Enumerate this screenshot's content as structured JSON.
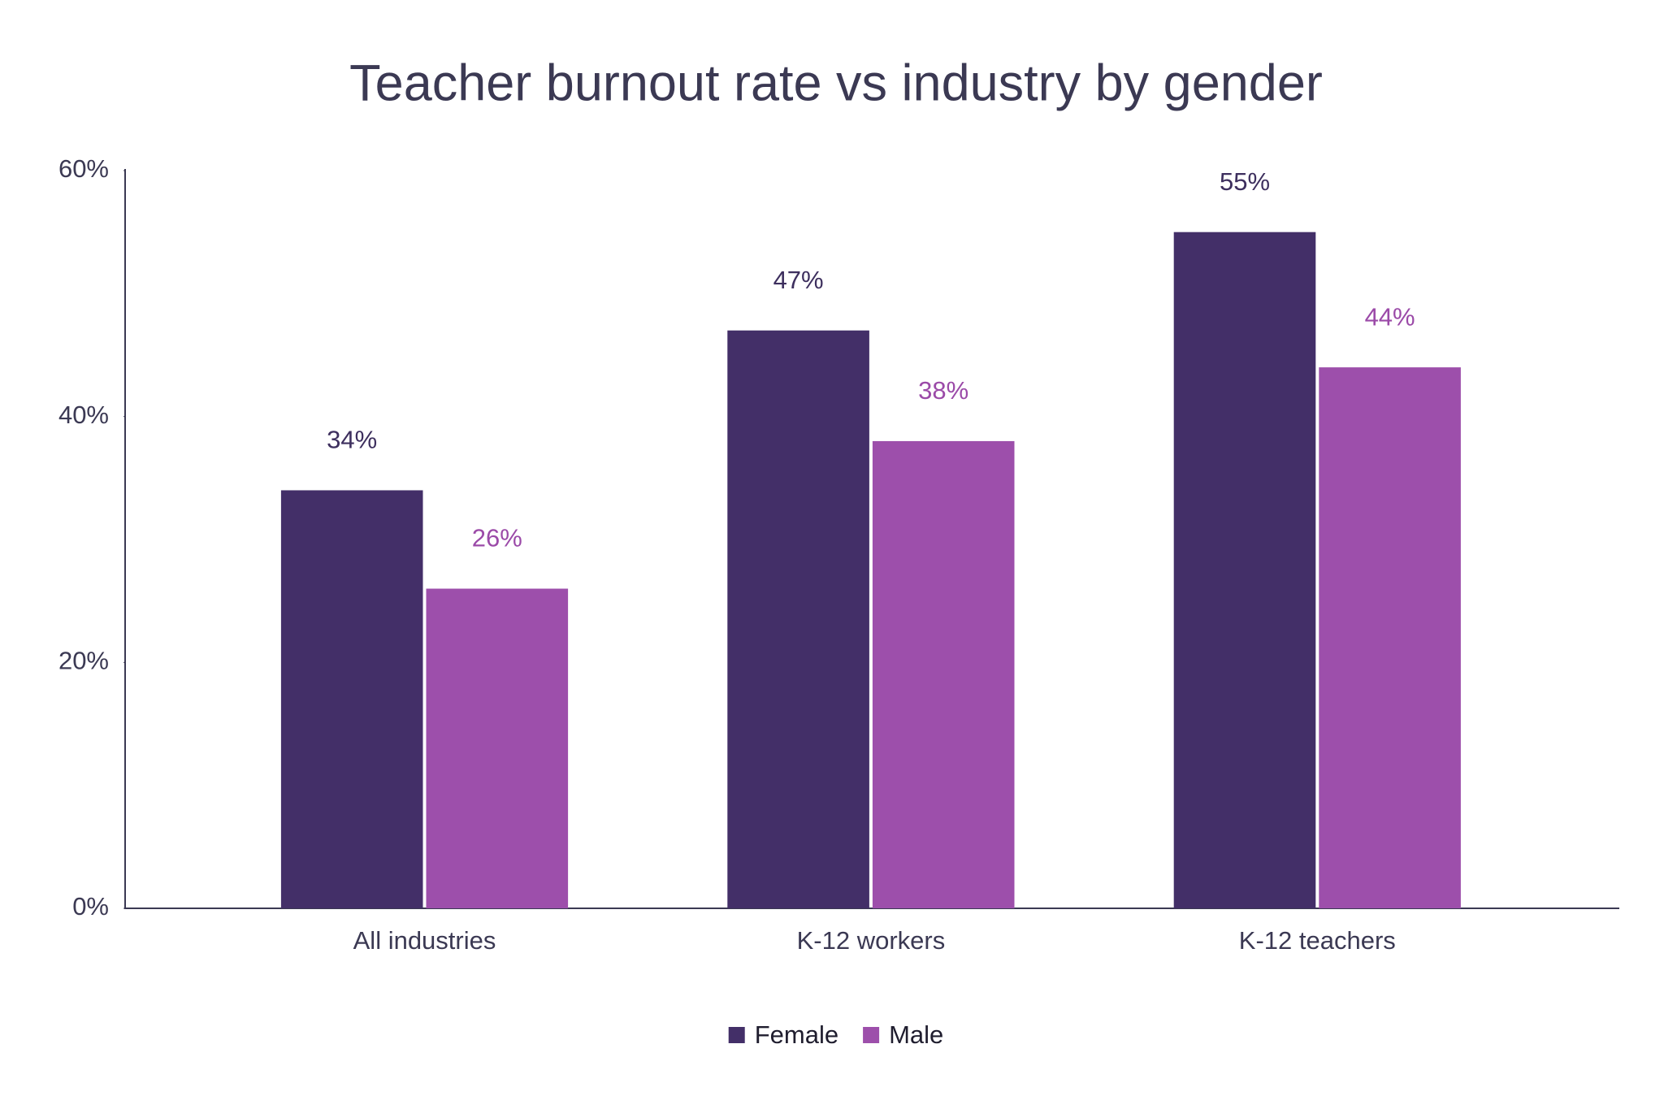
{
  "chart_data": {
    "type": "bar",
    "title": "Teacher burnout rate vs industry by gender",
    "categories": [
      "All industries",
      "K-12 workers",
      "K-12 teachers"
    ],
    "series": [
      {
        "name": "Female",
        "color": "#432f68",
        "label_color": "#3d2f5e",
        "values": [
          34,
          47,
          55
        ],
        "value_labels": [
          "34%",
          "47%",
          "55%"
        ]
      },
      {
        "name": "Male",
        "color": "#9d4fab",
        "label_color": "#9b4aa8",
        "values": [
          26,
          38,
          44
        ],
        "value_labels": [
          "26%",
          "38%",
          "44%"
        ]
      }
    ],
    "ylim": [
      0,
      60
    ],
    "yticks": [
      {
        "value": 0,
        "label": "0%"
      },
      {
        "value": 20,
        "label": "20%"
      },
      {
        "value": 40,
        "label": "40%"
      },
      {
        "value": 60,
        "label": "60%"
      }
    ],
    "grid": false,
    "legend": "bottom"
  }
}
